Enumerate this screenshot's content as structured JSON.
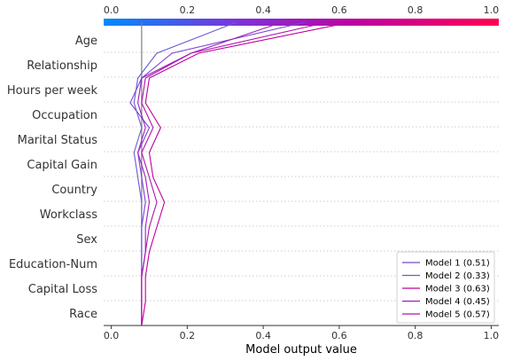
{
  "chart_data": {
    "type": "line",
    "subtype": "decision-plot",
    "xlabel": "Model output value",
    "xlim": [
      -0.02,
      1.02
    ],
    "ticks": [
      0.0,
      0.2,
      0.4,
      0.6,
      0.8,
      1.0
    ],
    "tick_labels": [
      "0.0",
      "0.2",
      "0.4",
      "0.6",
      "0.8",
      "1.0"
    ],
    "features": [
      "Age",
      "Relationship",
      "Hours per week",
      "Occupation",
      "Marital Status",
      "Capital Gain",
      "Country",
      "Workclass",
      "Sex",
      "Education-Num",
      "Capital Loss",
      "Race"
    ],
    "base_value": 0.08,
    "colorbar": {
      "stops": [
        "#008bfb",
        "#8030d8",
        "#c000a0",
        "#ff0052"
      ]
    },
    "grid": true,
    "legend_position": "bottom-right",
    "series": [
      {
        "name": "Model 1 (0.51)",
        "color": "#7a44d2",
        "values": [
          0.51,
          0.16,
          0.08,
          0.05,
          0.1,
          0.07,
          0.08,
          0.09,
          0.08,
          0.08,
          0.08,
          0.08,
          0.08
        ]
      },
      {
        "name": "Model 2 (0.33)",
        "color": "#6a5ad6",
        "values": [
          0.33,
          0.12,
          0.07,
          0.06,
          0.08,
          0.06,
          0.07,
          0.08,
          0.08,
          0.08,
          0.08,
          0.08,
          0.08
        ]
      },
      {
        "name": "Model 3 (0.63)",
        "color": "#c0009c",
        "values": [
          0.63,
          0.23,
          0.1,
          0.09,
          0.13,
          0.1,
          0.11,
          0.14,
          0.12,
          0.1,
          0.09,
          0.09,
          0.08
        ]
      },
      {
        "name": "Model 4 (0.45)",
        "color": "#9a20bc",
        "values": [
          0.45,
          0.21,
          0.08,
          0.07,
          0.09,
          0.07,
          0.09,
          0.1,
          0.09,
          0.09,
          0.08,
          0.08,
          0.08
        ]
      },
      {
        "name": "Model 5 (0.57)",
        "color": "#ac14b0",
        "values": [
          0.57,
          0.21,
          0.09,
          0.08,
          0.11,
          0.08,
          0.1,
          0.12,
          0.1,
          0.09,
          0.08,
          0.08,
          0.08
        ]
      }
    ]
  }
}
